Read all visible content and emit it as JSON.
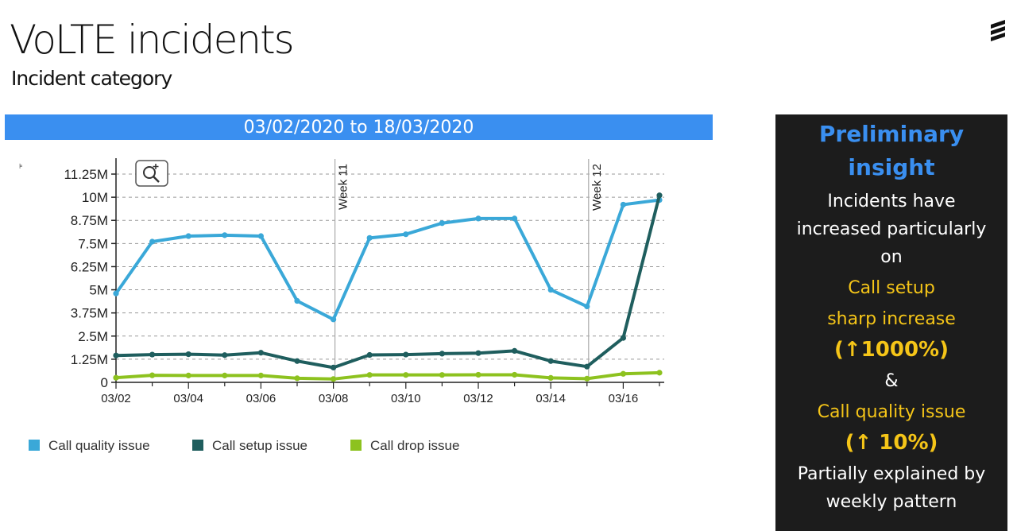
{
  "header": {
    "title": "VoLTE incidents",
    "subtitle": "Incident category"
  },
  "banner": {
    "date_range": "03/02/2020 to 18/03/2020"
  },
  "chart_data": {
    "type": "line",
    "x": [
      "03/02",
      "03/03",
      "03/04",
      "03/05",
      "03/06",
      "03/07",
      "03/08",
      "03/09",
      "03/10",
      "03/11",
      "03/12",
      "03/13",
      "03/14",
      "03/15",
      "03/16",
      "03/17"
    ],
    "x_tick_labels": [
      "03/02",
      "03/04",
      "03/06",
      "03/08",
      "03/10",
      "03/12",
      "03/14",
      "03/16"
    ],
    "y_tick_labels": [
      "0",
      "1.25M",
      "2.5M",
      "3.75M",
      "5M",
      "6.25M",
      "7.5M",
      "8.75M",
      "10M",
      "11.25M"
    ],
    "ylim": [
      0,
      11250000
    ],
    "grid": true,
    "legend": "bottom",
    "annotations": [
      {
        "x": "03/08",
        "label": "Week 11"
      },
      {
        "x": "03/15",
        "label": "Week 12"
      }
    ],
    "series": [
      {
        "name": "Call quality issue",
        "color": "#3aa8d8",
        "values": [
          4800000,
          7600000,
          7900000,
          7950000,
          7900000,
          4400000,
          3400000,
          7800000,
          8000000,
          8600000,
          8850000,
          8850000,
          5000000,
          4100000,
          9600000,
          9850000
        ]
      },
      {
        "name": "Call setup issue",
        "color": "#1f5e5e",
        "values": [
          1450000,
          1500000,
          1520000,
          1470000,
          1600000,
          1150000,
          800000,
          1480000,
          1500000,
          1550000,
          1580000,
          1700000,
          1150000,
          850000,
          2400000,
          10100000
        ]
      },
      {
        "name": "Call drop issue",
        "color": "#8dc21f",
        "values": [
          250000,
          380000,
          370000,
          370000,
          370000,
          220000,
          180000,
          400000,
          400000,
          400000,
          410000,
          410000,
          240000,
          200000,
          460000,
          520000
        ]
      }
    ]
  },
  "insight": {
    "heading": "Preliminary insight",
    "line1": "Incidents have increased particularly on",
    "highlight1a": "Call setup",
    "highlight1b": "sharp increase",
    "pct1": "(↑1000%)",
    "ampersand": "&",
    "highlight2": "Call quality issue",
    "pct2": "(↑ 10%)",
    "line2": "Partially explained by weekly pattern"
  },
  "icons": {
    "logo": "ericsson-logo-icon",
    "zoom": "zoom-in-icon"
  }
}
